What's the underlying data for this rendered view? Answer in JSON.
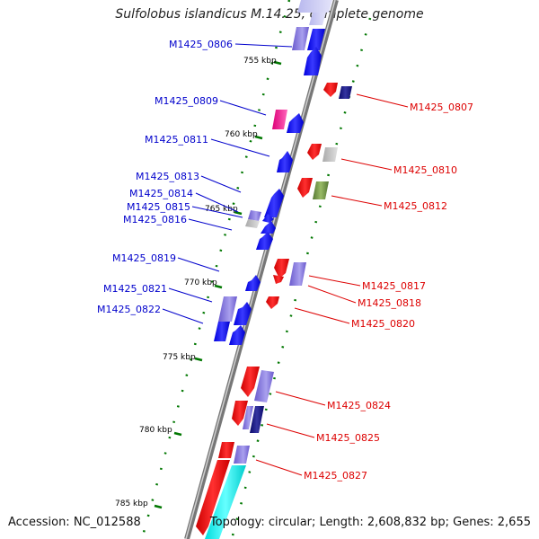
{
  "title": "Sulfolobus islandicus M.14.25, complete genome",
  "footer": {
    "accession": "Accession: NC_012588",
    "summary": "Topology: circular; Length: 2,608,832 bp; Genes: 2,655"
  },
  "colors": {
    "forward_label": "#0000cc",
    "reverse_label": "#dd0000",
    "forward_gene": "#1010ee",
    "reverse_gene": "#ee1010",
    "backbone": "#777777",
    "tick": "#007700"
  },
  "ticks": [
    {
      "label": "755 kbp"
    },
    {
      "label": "760 kbp"
    },
    {
      "label": "765 kbp"
    },
    {
      "label": "770 kbp"
    },
    {
      "label": "775 kbp"
    },
    {
      "label": "780 kbp"
    },
    {
      "label": "785 kbp"
    }
  ],
  "forward_labels": [
    {
      "id": "M1425_0806"
    },
    {
      "id": "M1425_0809"
    },
    {
      "id": "M1425_0811"
    },
    {
      "id": "M1425_0813"
    },
    {
      "id": "M1425_0814"
    },
    {
      "id": "M1425_0815"
    },
    {
      "id": "M1425_0816"
    },
    {
      "id": "M1425_0819"
    },
    {
      "id": "M1425_0821"
    },
    {
      "id": "M1425_0822"
    }
  ],
  "reverse_labels": [
    {
      "id": "M1425_0807"
    },
    {
      "id": "M1425_0810"
    },
    {
      "id": "M1425_0812"
    },
    {
      "id": "M1425_0817"
    },
    {
      "id": "M1425_0818"
    },
    {
      "id": "M1425_0820"
    },
    {
      "id": "M1425_0824"
    },
    {
      "id": "M1425_0825"
    },
    {
      "id": "M1425_0827"
    }
  ]
}
